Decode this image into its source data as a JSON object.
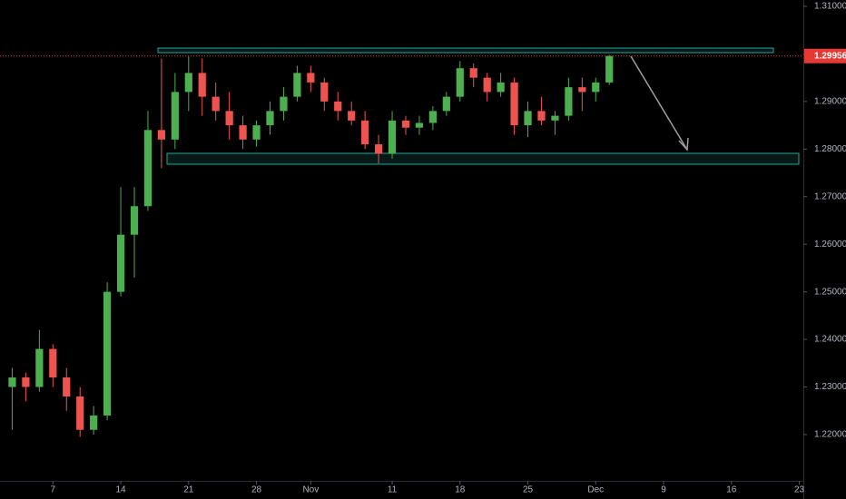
{
  "chart_data": {
    "type": "candlestick",
    "x": [
      -3,
      -2,
      -1,
      0,
      1,
      2,
      3,
      4,
      5,
      6,
      7,
      8,
      9,
      10,
      11,
      12,
      13,
      14,
      15,
      16,
      17,
      18,
      19,
      20,
      21,
      22,
      23,
      24,
      25,
      26,
      27,
      28,
      29,
      30,
      31,
      32,
      33,
      34,
      35,
      36,
      37,
      38,
      39,
      40,
      41
    ],
    "series": [
      {
        "open": [
          1.23,
          1.232,
          1.23,
          1.238,
          1.232,
          1.228,
          1.221,
          1.224,
          1.25,
          1.262,
          1.268,
          1.284,
          1.282,
          1.292,
          1.296,
          1.291,
          1.288,
          1.285,
          1.282,
          1.285,
          1.288,
          1.291,
          1.296,
          1.294,
          1.29,
          1.288,
          1.286,
          1.281,
          1.279,
          1.286,
          1.2845,
          1.2855,
          1.288,
          1.291,
          1.297,
          1.295,
          1.292,
          1.294,
          1.285,
          1.288,
          1.286,
          1.287,
          1.293,
          1.292,
          1.294
        ],
        "high": [
          1.234,
          1.233,
          1.242,
          1.239,
          1.234,
          1.23,
          1.226,
          1.252,
          1.272,
          1.272,
          1.288,
          1.299,
          1.296,
          1.2995,
          1.299,
          1.294,
          1.292,
          1.287,
          1.286,
          1.29,
          1.293,
          1.2975,
          1.2975,
          1.295,
          1.292,
          1.29,
          1.288,
          1.283,
          1.288,
          1.287,
          1.287,
          1.289,
          1.292,
          1.2985,
          1.298,
          1.296,
          1.296,
          1.295,
          1.29,
          1.291,
          1.288,
          1.295,
          1.295,
          1.295,
          1.2998
        ],
        "low": [
          1.221,
          1.227,
          1.229,
          1.23,
          1.225,
          1.2195,
          1.22,
          1.223,
          1.249,
          1.253,
          1.267,
          1.276,
          1.28,
          1.288,
          1.287,
          1.286,
          1.282,
          1.28,
          1.2805,
          1.283,
          1.286,
          1.29,
          1.292,
          1.288,
          1.286,
          1.285,
          1.28,
          1.277,
          1.278,
          1.283,
          1.283,
          1.284,
          1.287,
          1.29,
          1.293,
          1.29,
          1.291,
          1.283,
          1.2825,
          1.285,
          1.283,
          1.286,
          1.288,
          1.29,
          1.2935
        ],
        "close": [
          1.232,
          1.23,
          1.238,
          1.232,
          1.228,
          1.221,
          1.224,
          1.25,
          1.262,
          1.268,
          1.284,
          1.282,
          1.292,
          1.296,
          1.291,
          1.288,
          1.285,
          1.282,
          1.285,
          1.288,
          1.291,
          1.296,
          1.294,
          1.29,
          1.288,
          1.286,
          1.281,
          1.279,
          1.286,
          1.2845,
          1.2855,
          1.288,
          1.291,
          1.297,
          1.295,
          1.292,
          1.294,
          1.285,
          1.288,
          1.286,
          1.287,
          1.293,
          1.292,
          1.294,
          1.29956
        ]
      }
    ],
    "up_color": "#4caf50",
    "down_color": "#ef5350",
    "last_price": 1.29956,
    "last_price_color": "#e53935",
    "xlim": [
      -3.9,
      55.3
    ],
    "xticks": [
      {
        "value": 0,
        "label": "7"
      },
      {
        "value": 5,
        "label": "14"
      },
      {
        "value": 10,
        "label": "21"
      },
      {
        "value": 15,
        "label": "28"
      },
      {
        "value": 19,
        "label": "Nov"
      },
      {
        "value": 25,
        "label": "11"
      },
      {
        "value": 30,
        "label": "18"
      },
      {
        "value": 35,
        "label": "25"
      },
      {
        "value": 40,
        "label": "Dec"
      },
      {
        "value": 45,
        "label": "9"
      },
      {
        "value": 50,
        "label": "16"
      },
      {
        "value": 55,
        "label": "23"
      }
    ],
    "ylim": [
      1.21027,
      1.31133
    ],
    "yticks": [
      {
        "value": 1.31,
        "label": "1.31000"
      },
      {
        "value": 1.3,
        "label": "1.30000"
      },
      {
        "value": 1.29,
        "label": "1.29000"
      },
      {
        "value": 1.28,
        "label": "1.28000"
      },
      {
        "value": 1.27,
        "label": "1.27000"
      },
      {
        "value": 1.26,
        "label": "1.26000"
      },
      {
        "value": 1.25,
        "label": "1.25000"
      },
      {
        "value": 1.24,
        "label": "1.24000"
      },
      {
        "value": 1.23,
        "label": "1.23000"
      },
      {
        "value": 1.22,
        "label": "1.22000"
      }
    ],
    "grid": false
  }
}
